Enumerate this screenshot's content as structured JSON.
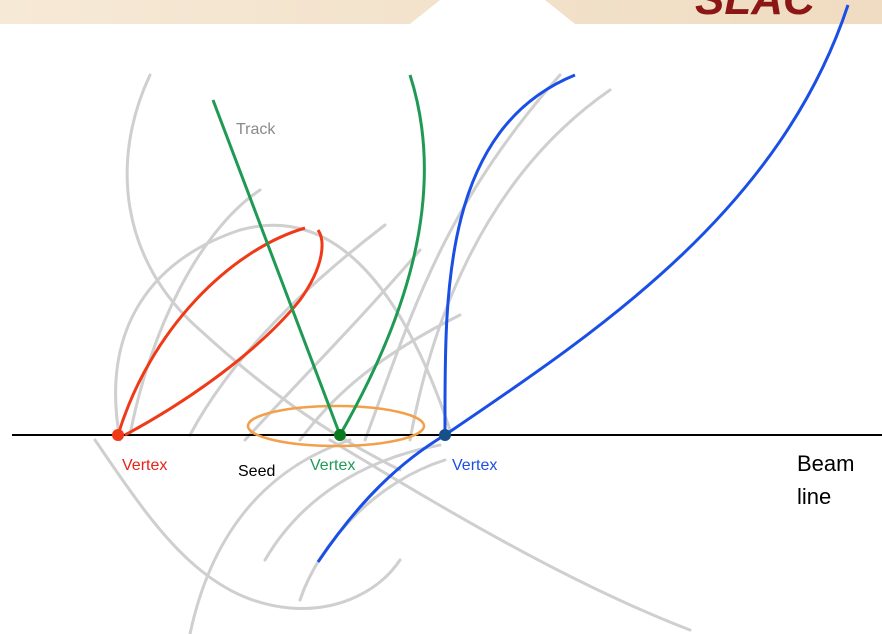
{
  "logo": "SLAC",
  "labels": {
    "track": "Track",
    "red_vertex": "Vertex",
    "seed": "Seed",
    "green_vertex": "Vertex",
    "blue_vertex": "Vertex",
    "beam_line": [
      "Beam",
      "line"
    ]
  }
}
